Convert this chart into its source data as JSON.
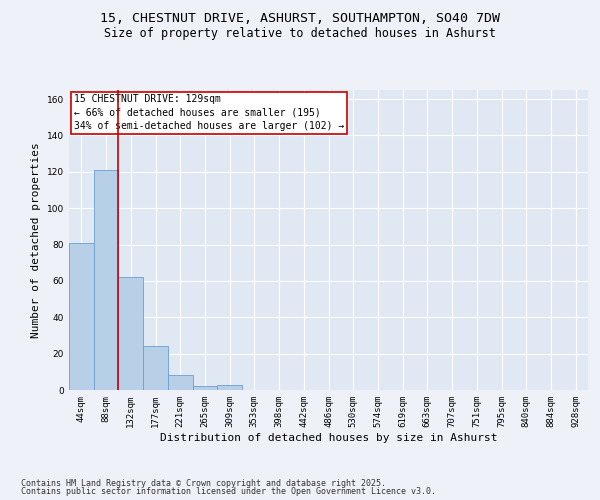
{
  "title_line1": "15, CHESTNUT DRIVE, ASHURST, SOUTHAMPTON, SO40 7DW",
  "title_line2": "Size of property relative to detached houses in Ashurst",
  "xlabel": "Distribution of detached houses by size in Ashurst",
  "ylabel": "Number of detached properties",
  "categories": [
    "44sqm",
    "88sqm",
    "132sqm",
    "177sqm",
    "221sqm",
    "265sqm",
    "309sqm",
    "353sqm",
    "398sqm",
    "442sqm",
    "486sqm",
    "530sqm",
    "574sqm",
    "619sqm",
    "663sqm",
    "707sqm",
    "751sqm",
    "795sqm",
    "840sqm",
    "884sqm",
    "928sqm"
  ],
  "values": [
    81,
    121,
    62,
    24,
    8,
    2,
    3,
    0,
    0,
    0,
    0,
    0,
    0,
    0,
    0,
    0,
    0,
    0,
    0,
    0,
    0
  ],
  "bar_color": "#b8cfe8",
  "bar_edgecolor": "#6a9fd4",
  "ylim": [
    0,
    165
  ],
  "yticks": [
    0,
    20,
    40,
    60,
    80,
    100,
    120,
    140,
    160
  ],
  "annotation_title": "15 CHESTNUT DRIVE: 129sqm",
  "annotation_line1": "← 66% of detached houses are smaller (195)",
  "annotation_line2": "34% of semi-detached houses are larger (102) →",
  "annotation_box_color": "#ffffff",
  "annotation_box_edgecolor": "#cc0000",
  "footer_line1": "Contains HM Land Registry data © Crown copyright and database right 2025.",
  "footer_line2": "Contains public sector information licensed under the Open Government Licence v3.0.",
  "bg_color": "#eef2f8",
  "plot_bg_color": "#e0e8f4",
  "grid_color": "#ffffff",
  "title_fontsize": 9.5,
  "subtitle_fontsize": 8.5,
  "axis_label_fontsize": 8,
  "tick_fontsize": 6.5,
  "annotation_fontsize": 7,
  "footer_fontsize": 6
}
